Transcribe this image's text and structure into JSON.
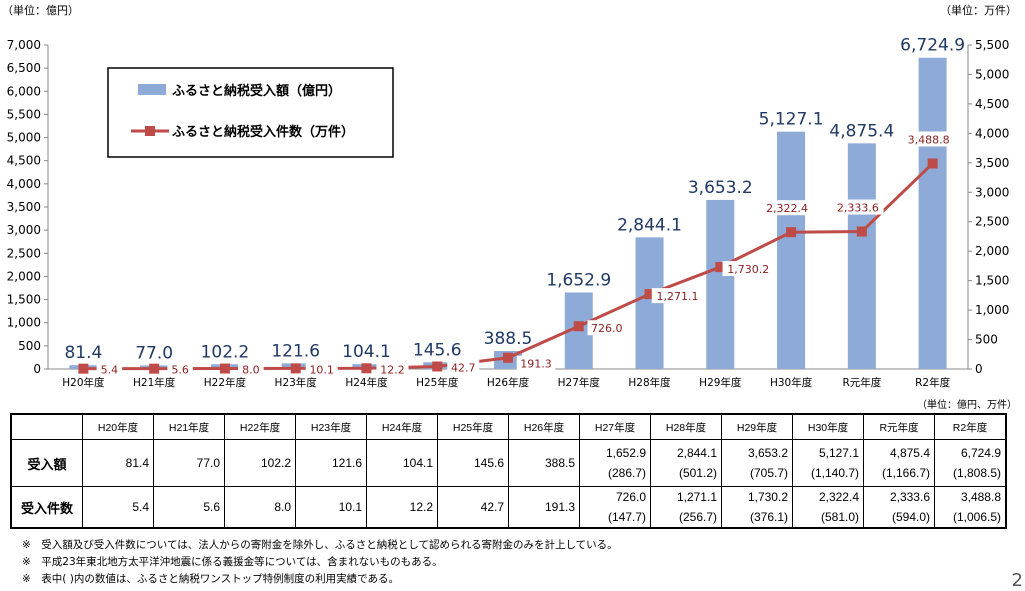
{
  "chart_data": {
    "type": "bar+line",
    "categories": [
      "H20年度",
      "H21年度",
      "H22年度",
      "H23年度",
      "H24年度",
      "H25年度",
      "H26年度",
      "H27年度",
      "H28年度",
      "H29年度",
      "H30年度",
      "R元年度",
      "R2年度"
    ],
    "series": [
      {
        "name": "ふるさと納税受入額（億円）",
        "type": "bar",
        "axis": "left",
        "color": "#8eaad6",
        "values": [
          81.4,
          77.0,
          102.2,
          121.6,
          104.1,
          145.6,
          388.5,
          1652.9,
          2844.1,
          3653.2,
          5127.1,
          4875.4,
          6724.9
        ],
        "labels": [
          "81.4",
          "77.0",
          "102.2",
          "121.6",
          "104.1",
          "145.6",
          "388.5",
          "1,652.9",
          "2,844.1",
          "3,653.2",
          "5,127.1",
          "4,875.4",
          "6,724.9"
        ]
      },
      {
        "name": "ふるさと納税受入件数（万件）",
        "type": "line",
        "axis": "right",
        "color": "#be4b48",
        "values": [
          5.4,
          5.6,
          8.0,
          10.1,
          12.2,
          42.7,
          191.3,
          726.0,
          1271.1,
          1730.2,
          2322.4,
          2333.6,
          3488.8
        ],
        "labels": [
          "5.4",
          "5.6",
          "8.0",
          "10.1",
          "12.2",
          "42.7",
          "191.3",
          "726.0",
          "1,271.1",
          "1,730.2",
          "2,322.4",
          "2,333.6",
          "3,488.8"
        ]
      }
    ],
    "left_axis": {
      "unit_label": "（単位：億円）",
      "ylim": [
        0,
        7000
      ],
      "ticks": [
        "0",
        "500",
        "1,000",
        "1,500",
        "2,000",
        "2,500",
        "3,000",
        "3,500",
        "4,000",
        "4,500",
        "5,000",
        "5,500",
        "6,000",
        "6,500",
        "7,000"
      ]
    },
    "right_axis": {
      "unit_label": "（単位：万件）",
      "ylim": [
        0,
        5500
      ],
      "ticks": [
        "0",
        "500",
        "1,000",
        "1,500",
        "2,000",
        "2,500",
        "3,000",
        "3,500",
        "4,000",
        "4,500",
        "5,000",
        "5,500"
      ]
    },
    "legend": "top-left",
    "grid": false
  },
  "table": {
    "unit_label": "（単位：億円、万件）",
    "headers": [
      "H20年度",
      "H21年度",
      "H22年度",
      "H23年度",
      "H24年度",
      "H25年度",
      "H26年度",
      "H27年度",
      "H28年度",
      "H29年度",
      "H30年度",
      "R元年度",
      "R2年度"
    ],
    "rows": [
      {
        "label": "受入額",
        "values": [
          "81.4",
          "77.0",
          "102.2",
          "121.6",
          "104.1",
          "145.6",
          "388.5",
          "1,652.9",
          "2,844.1",
          "3,653.2",
          "5,127.1",
          "4,875.4",
          "6,724.9"
        ],
        "sub": [
          "",
          "",
          "",
          "",
          "",
          "",
          "",
          "(286.7)",
          "(501.2)",
          "(705.7)",
          "(1,140.7)",
          "(1,166.7)",
          "(1,808.5)"
        ]
      },
      {
        "label": "受入件数",
        "values": [
          "5.4",
          "5.6",
          "8.0",
          "10.1",
          "12.2",
          "42.7",
          "191.3",
          "726.0",
          "1,271.1",
          "1,730.2",
          "2,322.4",
          "2,333.6",
          "3,488.8"
        ],
        "sub": [
          "",
          "",
          "",
          "",
          "",
          "",
          "",
          "(147.7)",
          "(256.7)",
          "(376.1)",
          "(581.0)",
          "(594.0)",
          "(1,006.5)"
        ]
      }
    ]
  },
  "notes": [
    "※　受入額及び受入件数については、法人からの寄附金を除外し、ふるさと納税として認められる寄附金のみを計上している。",
    "※　平成23年東北地方太平洋沖地震に係る義援金等については、含まれないものもある。",
    "※　表中(  )内の数値は、ふるさと納税ワンストップ特例制度の利用実績である。"
  ],
  "page_number": "2"
}
